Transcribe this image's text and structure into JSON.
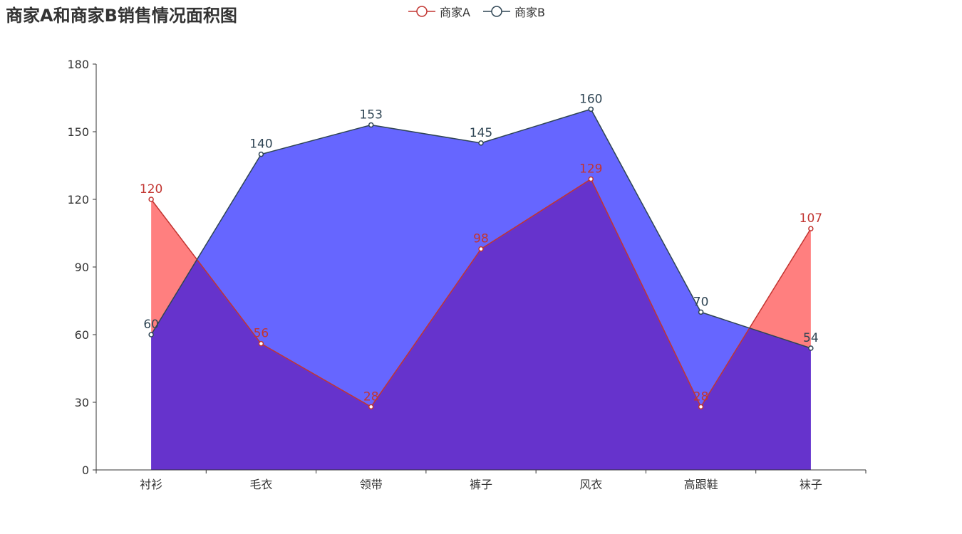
{
  "chart_data": {
    "type": "area",
    "title": "商家A和商家B销售情况面积图",
    "categories": [
      "衬衫",
      "毛衣",
      "领带",
      "裤子",
      "风衣",
      "高跟鞋",
      "袜子"
    ],
    "series": [
      {
        "name": "商家A",
        "values": [
          120,
          56,
          28,
          98,
          129,
          28,
          107
        ],
        "color": "#c23531",
        "fill": "#ff7f7f"
      },
      {
        "name": "商家B",
        "values": [
          60,
          140,
          153,
          145,
          160,
          70,
          54
        ],
        "color": "#2f4554",
        "fill": "#6666ff"
      }
    ],
    "overlap_color": "#6633cc",
    "ylim": [
      0,
      180
    ],
    "yticks": [
      0,
      30,
      60,
      90,
      120,
      150,
      180
    ],
    "legend_position": "top-center",
    "grid": false
  }
}
